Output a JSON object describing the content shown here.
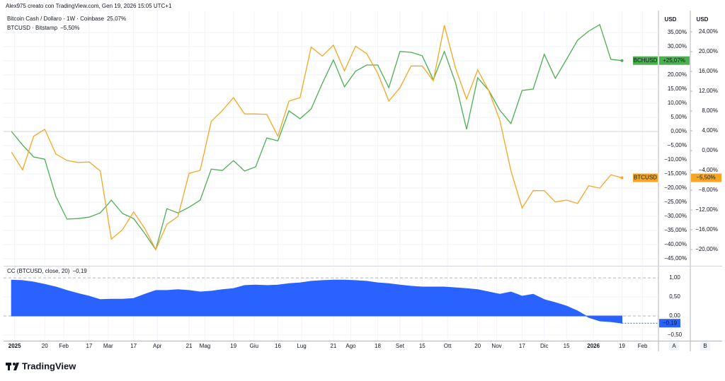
{
  "header": "Alex975 creato con TradingView.com, Gen 19, 2026 15:05 UTC+1",
  "chart_data": [
    {
      "type": "line",
      "x": [
        "2024-12-30",
        "2025-01-06",
        "2025-01-13",
        "2025-01-20",
        "2025-01-27",
        "2025-02-03",
        "2025-02-10",
        "2025-02-17",
        "2025-02-24",
        "2025-03-03",
        "2025-03-10",
        "2025-03-17",
        "2025-03-24",
        "2025-03-31",
        "2025-04-07",
        "2025-04-14",
        "2025-04-21",
        "2025-04-28",
        "2025-05-05",
        "2025-05-12",
        "2025-05-19",
        "2025-05-26",
        "2025-06-02",
        "2025-06-09",
        "2025-06-16",
        "2025-06-23",
        "2025-06-30",
        "2025-07-07",
        "2025-07-14",
        "2025-07-21",
        "2025-07-28",
        "2025-08-04",
        "2025-08-11",
        "2025-08-18",
        "2025-08-25",
        "2025-09-01",
        "2025-09-08",
        "2025-09-15",
        "2025-09-22",
        "2025-09-29",
        "2025-10-06",
        "2025-10-13",
        "2025-10-20",
        "2025-10-27",
        "2025-11-03",
        "2025-11-10",
        "2025-11-17",
        "2025-11-24",
        "2025-12-01",
        "2025-12-08",
        "2025-12-15",
        "2025-12-22",
        "2025-12-29",
        "2026-01-05",
        "2026-01-12",
        "2026-01-19"
      ],
      "xlim": [
        "2024-12-25",
        "2026-02-11"
      ],
      "xticks": [
        {
          "value": "2025-01-01",
          "label": "2025"
        },
        {
          "value": "2025-01-20",
          "label": "20"
        },
        {
          "value": "2025-02-01",
          "label": "Feb"
        },
        {
          "value": "2025-02-17",
          "label": "17"
        },
        {
          "value": "2025-03-01",
          "label": "Mar"
        },
        {
          "value": "2025-03-17",
          "label": "17"
        },
        {
          "value": "2025-04-01",
          "label": "Apr"
        },
        {
          "value": "2025-04-21",
          "label": "21"
        },
        {
          "value": "2025-05-01",
          "label": "Mag"
        },
        {
          "value": "2025-05-19",
          "label": "19"
        },
        {
          "value": "2025-06-01",
          "label": "Giu"
        },
        {
          "value": "2025-06-16",
          "label": "16"
        },
        {
          "value": "2025-07-01",
          "label": "Lug"
        },
        {
          "value": "2025-07-21",
          "label": "21"
        },
        {
          "value": "2025-08-01",
          "label": "Ago"
        },
        {
          "value": "2025-08-18",
          "label": "18"
        },
        {
          "value": "2025-09-01",
          "label": "Set"
        },
        {
          "value": "2025-09-15",
          "label": "15"
        },
        {
          "value": "2025-10-01",
          "label": "Ott"
        },
        {
          "value": "2025-10-20",
          "label": "20"
        },
        {
          "value": "2025-11-01",
          "label": "Nov"
        },
        {
          "value": "2025-11-17",
          "label": "17"
        },
        {
          "value": "2025-12-01",
          "label": "Dic"
        },
        {
          "value": "2025-12-15",
          "label": "15"
        },
        {
          "value": "2026-01-01",
          "label": "2026"
        },
        {
          "value": "2026-01-19",
          "label": "19"
        },
        {
          "value": "2026-02-01",
          "label": "Feb"
        }
      ],
      "y_unit": "USD",
      "y2_unit": "USD",
      "ylim": [
        -47.25,
        42.75
      ],
      "yticks": [
        {
          "value": 35,
          "label": "35,00%"
        },
        {
          "value": 30,
          "label": "30,00%"
        },
        {
          "value": 25,
          "label": "25,00%"
        },
        {
          "value": 20,
          "label": "20,00%"
        },
        {
          "value": 15,
          "label": "15,00%"
        },
        {
          "value": 10,
          "label": "10,00%"
        },
        {
          "value": 5,
          "label": "5,00%"
        },
        {
          "value": 0,
          "label": "0,00%"
        },
        {
          "value": -5,
          "label": "−5,00%"
        },
        {
          "value": -10,
          "label": "−10,00%"
        },
        {
          "value": -15,
          "label": "−15,00%"
        },
        {
          "value": -20,
          "label": "−20,00%"
        },
        {
          "value": -25,
          "label": "−25,00%"
        },
        {
          "value": -30,
          "label": "−30,00%"
        },
        {
          "value": -35,
          "label": "−35,00%"
        },
        {
          "value": -40,
          "label": "−40,00%"
        },
        {
          "value": -45,
          "label": "−45,00%"
        }
      ],
      "y2lim": [
        -23.14,
        28.29
      ],
      "y2ticks": [
        {
          "value": 24,
          "label": "24,00%"
        },
        {
          "value": 20,
          "label": "20,00%"
        },
        {
          "value": 16,
          "label": "16,00%"
        },
        {
          "value": 12,
          "label": "12,00%"
        },
        {
          "value": 8,
          "label": "8,00%"
        },
        {
          "value": 4,
          "label": "4,00%"
        },
        {
          "value": 0,
          "label": "0,00%"
        },
        {
          "value": -4,
          "label": "−4,00%"
        },
        {
          "value": -8,
          "label": "−8,00%"
        },
        {
          "value": -12,
          "label": "−12,00%"
        },
        {
          "value": -16,
          "label": "−16,00%"
        },
        {
          "value": -20,
          "label": "−20,00%"
        }
      ],
      "grid": true,
      "series": [
        {
          "name": "Bitcoin Cash / Dollaro · 1W · Coinbase",
          "legend_value": "25,07%",
          "symbol": "BCHUSD",
          "color": "#4caf50",
          "values": [
            0,
            -4.8,
            -9,
            -9.8,
            -23,
            -31,
            -30.8,
            -30.3,
            -28.8,
            -24.3,
            -29,
            -30.8,
            -36,
            -41.8,
            -27.3,
            -28.8,
            -26.8,
            -24.3,
            -13.3,
            -13.8,
            -10.3,
            -14,
            -12.5,
            -2.3,
            -3.3,
            7.3,
            4.5,
            8,
            17,
            25.3,
            15.8,
            21.3,
            23.5,
            23.5,
            15.5,
            28.3,
            28,
            26.8,
            18.3,
            28.3,
            17.3,
            0.8,
            19,
            14.5,
            7.5,
            2.8,
            14.5,
            15,
            27.3,
            18.8,
            25.5,
            32.3,
            35.5,
            37.8,
            25.5,
            25.07
          ],
          "value_labels": [
            null,
            null,
            null,
            null,
            null,
            null,
            null,
            null,
            null,
            null,
            null,
            null,
            null,
            null,
            null,
            null,
            null,
            null,
            null,
            null,
            null,
            null,
            null,
            null,
            null,
            null,
            null,
            null,
            null,
            null,
            null,
            null,
            null,
            null,
            null,
            null,
            null,
            null,
            null,
            null,
            null,
            null,
            null,
            null,
            null,
            null,
            null,
            null,
            null,
            null,
            null,
            null,
            null,
            null,
            null,
            "+25,07%"
          ]
        },
        {
          "name": "BTCUSD · Bitstamp",
          "legend_value": "−5,50%",
          "symbol": "BTCUSD",
          "color": "#f5a623",
          "axis": "y2",
          "values": [
            -0.3,
            -3.9,
            2.9,
            4.3,
            -0.7,
            -2,
            -2.4,
            -2.3,
            -4.1,
            -17.9,
            -16,
            -12.4,
            -15.7,
            -20,
            -14.9,
            -13.3,
            -4.6,
            -4,
            5.9,
            8.1,
            10.7,
            7.4,
            7.4,
            7.3,
            2.9,
            10,
            10.7,
            20.9,
            19.1,
            21.3,
            16.1,
            21.1,
            19.6,
            15.6,
            10,
            12.7,
            17.1,
            17.1,
            14.1,
            25.3,
            16.7,
            10.4,
            16.3,
            12.1,
            6.1,
            -4.1,
            -11.6,
            -8.1,
            -8.1,
            -10.4,
            -10,
            -10.7,
            -7.1,
            -7.6,
            -4.9,
            -5.5
          ],
          "value_labels": [
            null,
            null,
            null,
            null,
            null,
            null,
            null,
            null,
            null,
            null,
            null,
            null,
            null,
            null,
            null,
            null,
            null,
            null,
            null,
            null,
            null,
            null,
            null,
            null,
            null,
            null,
            null,
            null,
            null,
            null,
            null,
            null,
            null,
            null,
            null,
            null,
            null,
            null,
            null,
            null,
            null,
            null,
            null,
            null,
            null,
            null,
            null,
            null,
            null,
            null,
            null,
            null,
            null,
            null,
            null,
            "−5,50%"
          ]
        }
      ]
    },
    {
      "type": "area",
      "x": [
        "2024-12-30",
        "2025-01-06",
        "2025-01-13",
        "2025-01-20",
        "2025-01-27",
        "2025-02-03",
        "2025-02-10",
        "2025-02-17",
        "2025-02-24",
        "2025-03-03",
        "2025-03-10",
        "2025-03-17",
        "2025-03-24",
        "2025-03-31",
        "2025-04-07",
        "2025-04-14",
        "2025-04-21",
        "2025-04-28",
        "2025-05-05",
        "2025-05-12",
        "2025-05-19",
        "2025-05-26",
        "2025-06-02",
        "2025-06-09",
        "2025-06-16",
        "2025-06-23",
        "2025-06-30",
        "2025-07-07",
        "2025-07-14",
        "2025-07-21",
        "2025-07-28",
        "2025-08-04",
        "2025-08-11",
        "2025-08-18",
        "2025-08-25",
        "2025-09-01",
        "2025-09-08",
        "2025-09-15",
        "2025-09-22",
        "2025-09-29",
        "2025-10-06",
        "2025-10-13",
        "2025-10-20",
        "2025-10-27",
        "2025-11-03",
        "2025-11-10",
        "2025-11-17",
        "2025-11-24",
        "2025-12-01",
        "2025-12-08",
        "2025-12-15",
        "2025-12-22",
        "2025-12-29",
        "2026-01-05",
        "2026-01-12",
        "2026-01-19"
      ],
      "xlim": [
        "2024-12-25",
        "2026-02-11"
      ],
      "ylim": [
        -0.65,
        1.28
      ],
      "yticks": [
        {
          "value": 1,
          "label": "1,00"
        },
        {
          "value": 0.5,
          "label": "0,50"
        },
        {
          "value": 0,
          "label": "0,00"
        },
        {
          "value": -0.5,
          "label": "−0,50"
        }
      ],
      "series": [
        {
          "name": "CC (BTCUSD, close, 20)",
          "legend_value": "−0,19",
          "color": "#2962ff",
          "values": [
            0.94,
            0.93,
            0.89,
            0.83,
            0.76,
            0.67,
            0.59,
            0.52,
            0.43,
            0.44,
            0.44,
            0.46,
            0.57,
            0.67,
            0.67,
            0.69,
            0.67,
            0.63,
            0.65,
            0.69,
            0.72,
            0.8,
            0.81,
            0.8,
            0.81,
            0.85,
            0.87,
            0.91,
            0.93,
            0.94,
            0.94,
            0.93,
            0.91,
            0.87,
            0.85,
            0.81,
            0.78,
            0.76,
            0.76,
            0.76,
            0.74,
            0.72,
            0.69,
            0.63,
            0.57,
            0.63,
            0.52,
            0.57,
            0.43,
            0.35,
            0.26,
            0.13,
            -0.04,
            -0.13,
            -0.15,
            -0.19
          ],
          "value_labels": [
            null,
            null,
            null,
            null,
            null,
            null,
            null,
            null,
            null,
            null,
            null,
            null,
            null,
            null,
            null,
            null,
            null,
            null,
            null,
            null,
            null,
            null,
            null,
            null,
            null,
            null,
            null,
            null,
            null,
            null,
            null,
            null,
            null,
            null,
            null,
            null,
            null,
            null,
            null,
            null,
            null,
            null,
            null,
            null,
            null,
            null,
            null,
            null,
            null,
            null,
            null,
            null,
            null,
            null,
            null,
            "−0,19"
          ]
        }
      ]
    }
  ],
  "footer": {
    "logo": "TradingView",
    "buttons": [
      "A",
      "B"
    ]
  }
}
